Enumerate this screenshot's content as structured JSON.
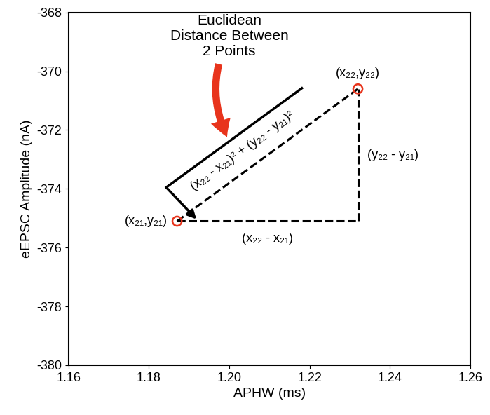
{
  "chart_data": {
    "type": "scatter",
    "x": [
      1.187,
      1.232
    ],
    "values": [
      -375.1,
      -370.6
    ],
    "point_labels": [
      "(x₂₁,y₂₁)",
      "(x₂₂,y₂₂)"
    ],
    "color": "#e8341c",
    "marker": "o",
    "line_style": "dashed",
    "x_label": "APHW (ms)",
    "y_label": "eEPSC Amplitude (nA)",
    "xlim": [
      1.16,
      1.26
    ],
    "ylim": [
      -380,
      -368
    ],
    "xticks": [
      1.16,
      1.18,
      {
        "value": 1.2,
        "label": "1.20"
      },
      1.22,
      1.24,
      1.26
    ],
    "yticks": [
      -380,
      -378,
      -376,
      -374,
      -372,
      -370,
      -368
    ],
    "annotations": {
      "title": "Euclidean\nDistance Between\n2 Points",
      "distance": "(x₂₂ - x₂₁)² + (y₂₂ - y₂₁)²",
      "dy": "(y₂₂ - y₂₁)",
      "dx": "(x₂₂ - x₂₁)"
    }
  }
}
